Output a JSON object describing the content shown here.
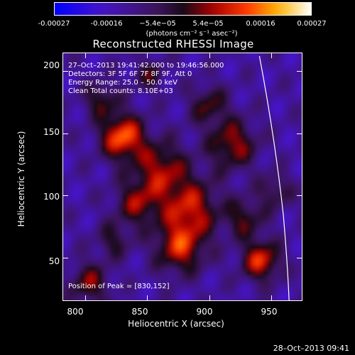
{
  "colorbar": {
    "ticks": [
      "-0.00027",
      "-0.00016",
      "−5.4e−05",
      "5.4e−05",
      "0.00016",
      "0.00027"
    ],
    "unit": "(photons cm⁻² s⁻¹ asec⁻²)"
  },
  "chart_data": {
    "type": "heatmap",
    "title": "Reconstructed RHESSI Image",
    "xlabel": "Heliocentric X (arcsec)",
    "ylabel": "Heliocentric Y (arcsec)",
    "xlim": [
      782,
      975
    ],
    "ylim": [
      15,
      215
    ],
    "xticks": [
      "800",
      "850",
      "900",
      "950"
    ],
    "yticks": [
      "50",
      "100",
      "150",
      "200"
    ],
    "zlim": [
      -0.00027,
      0.00027
    ],
    "colormap": "blue-purple-red-yellow-white",
    "peak": {
      "x": 830,
      "y": 152
    },
    "annotations": {
      "time": "27–Oct–2013 19:41:42.000 to 19:46:56.000",
      "detectors": "Detectors: 3F 5F 6F 7F 8F 9F, Att 0",
      "energy": "Energy Range: 25.0 – 50.0 keV",
      "clean": "Clean      Total counts: 8.10E+03",
      "peak_text": "Position of Peak = [830,152]"
    }
  },
  "timestamp": "28–Oct–2013 09:41"
}
